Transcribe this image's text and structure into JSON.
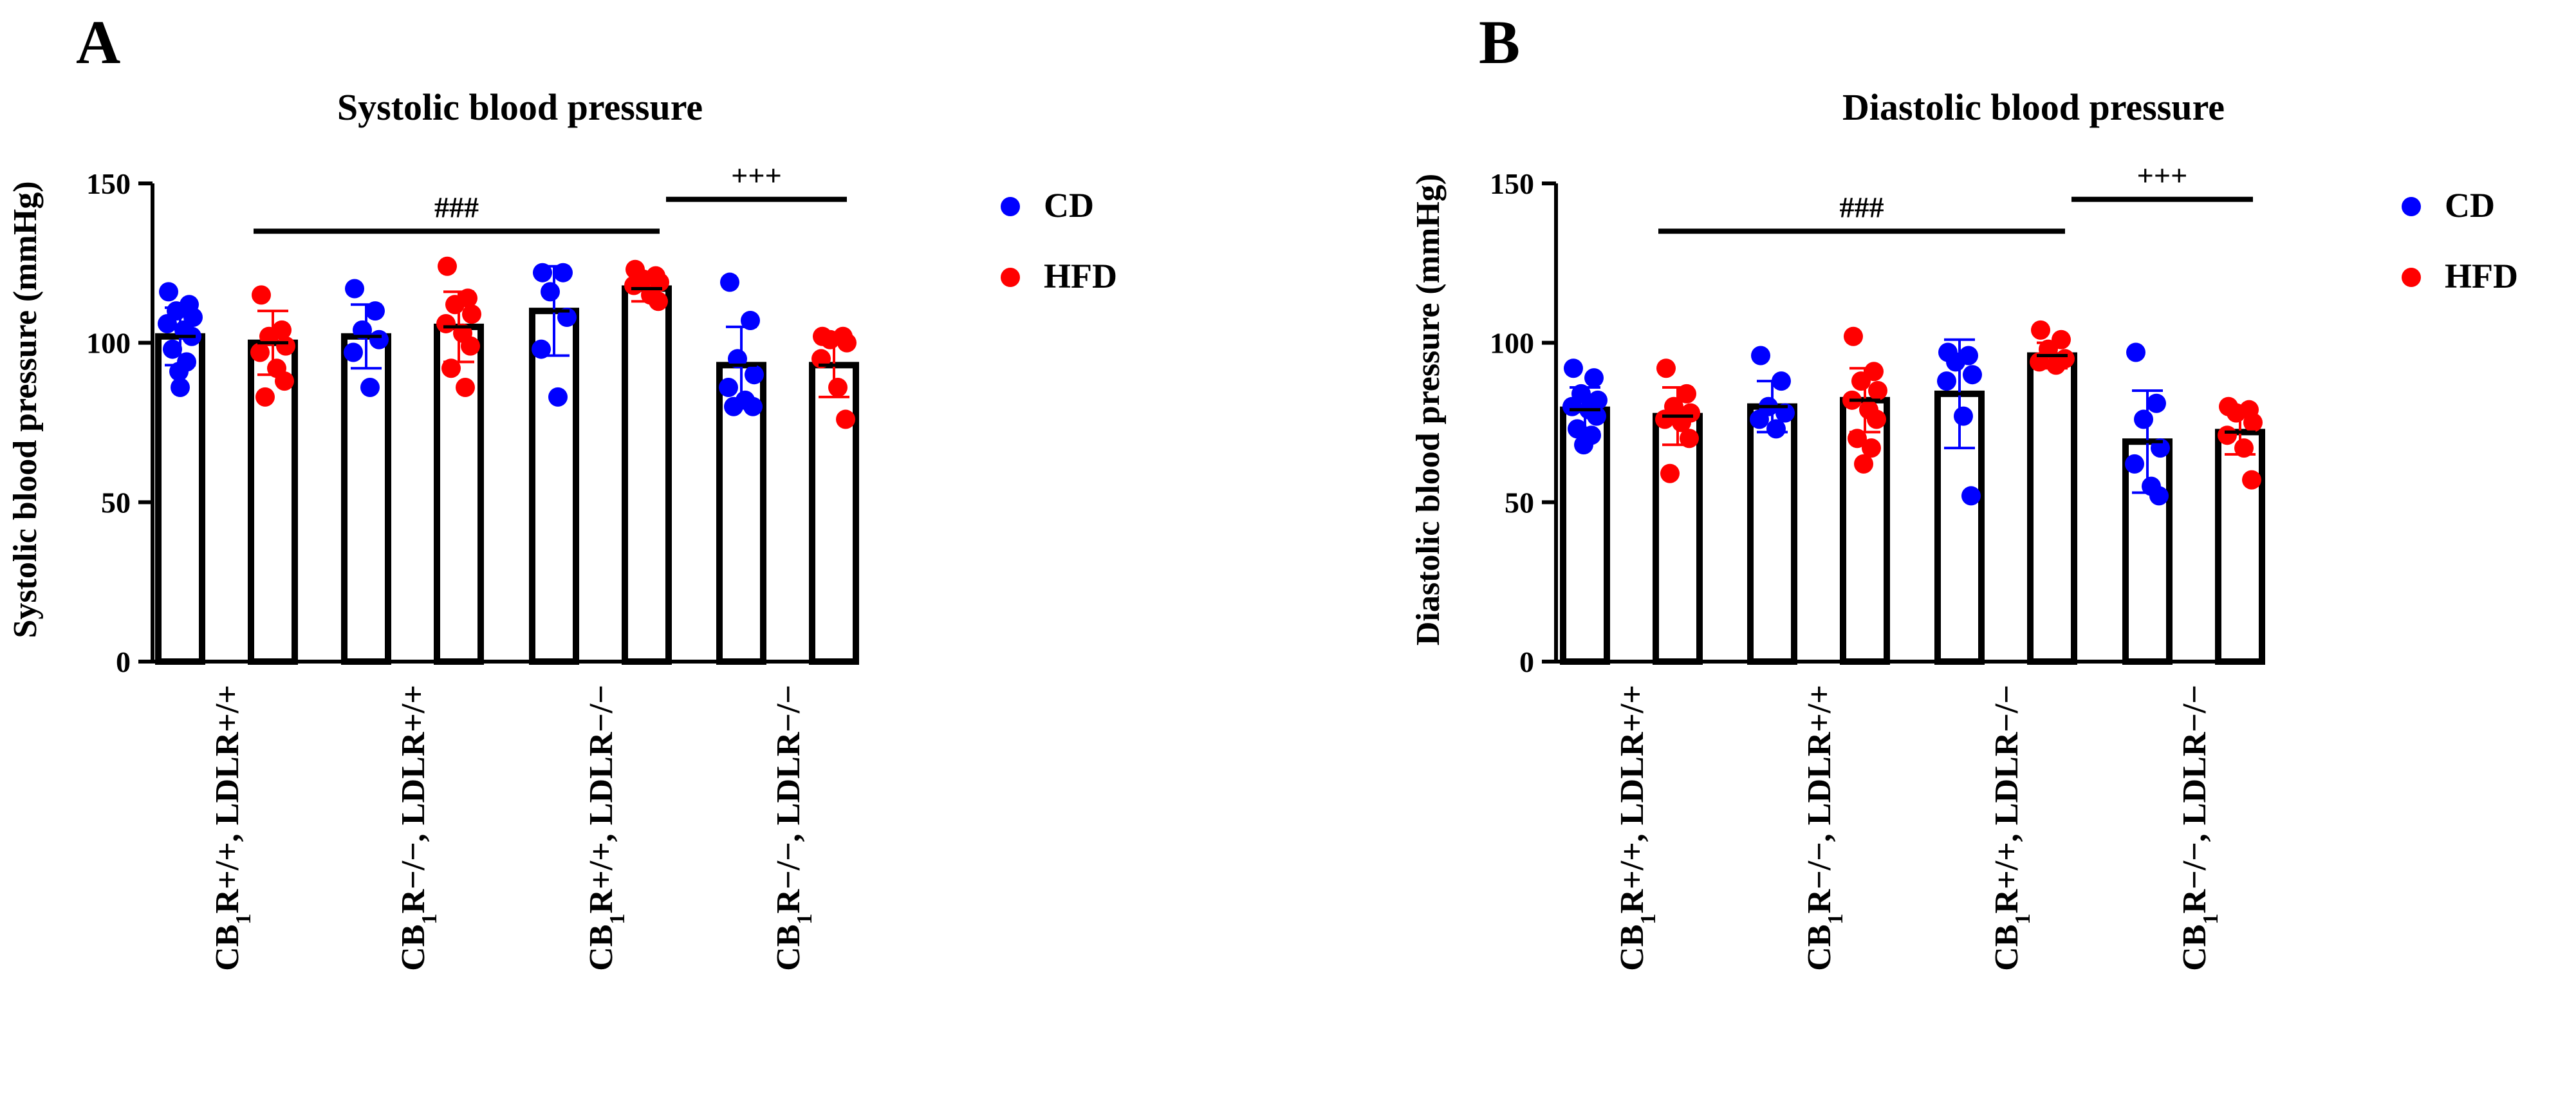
{
  "colors": {
    "CD": "#0000ff",
    "HFD": "#ff0000",
    "axis": "#000000"
  },
  "legend": [
    {
      "name": "CD",
      "color": "#0000ff"
    },
    {
      "name": "HFD",
      "color": "#ff0000"
    }
  ],
  "chart_data": [
    {
      "panel": "A",
      "type": "bar",
      "title": "Systolic blood pressure",
      "ylabel": "Systolic blood pressure (mmHg)",
      "xlabel": "",
      "ylim": [
        0,
        150
      ],
      "yticks": [
        0,
        50,
        100,
        150
      ],
      "categories": [
        {
          "pre": "CB",
          "sub": "1",
          "post": "R+/+, LDLR+/+"
        },
        {
          "pre": "CB",
          "sub": "1",
          "post": "R−/−, LDLR+/+"
        },
        {
          "pre": "CB",
          "sub": "1",
          "post": "R+/+, LDLR−/−"
        },
        {
          "pre": "CB",
          "sub": "1",
          "post": "R−/−, LDLR−/−"
        }
      ],
      "legend_position": "right",
      "grid": false,
      "series": [
        {
          "name": "CD",
          "values": [
            102,
            102,
            110,
            93
          ],
          "sd": [
            9,
            10,
            14,
            12
          ],
          "points": [
            [
              116,
              112,
              110,
              108,
              106,
              104,
              102,
              98,
              94,
              91,
              86
            ],
            [
              117,
              110,
              104,
              101,
              97,
              86
            ],
            [
              122,
              122,
              116,
              108,
              98,
              83
            ],
            [
              119,
              107,
              95,
              90,
              86,
              82,
              80,
              80
            ]
          ]
        },
        {
          "name": "HFD",
          "values": [
            100,
            105,
            117,
            93
          ],
          "sd": [
            10,
            11,
            4,
            10
          ],
          "points": [
            [
              115,
              104,
              102,
              99,
              97,
              92,
              88,
              83
            ],
            [
              124,
              114,
              112,
              109,
              106,
              103,
              99,
              92,
              86
            ],
            [
              123,
              121,
              120,
              119,
              118,
              115,
              113
            ],
            [
              102,
              102,
              101,
              100,
              95,
              86,
              76
            ]
          ]
        }
      ],
      "annotations": [
        {
          "label": "###",
          "from_category": 0,
          "to_category": 2,
          "y": 135
        },
        {
          "label": "+++",
          "from_category": 2,
          "to_category": 3,
          "y": 145
        }
      ]
    },
    {
      "panel": "B",
      "type": "bar",
      "title": "Diastolic blood pressure",
      "ylabel": "Diastolic blood pressure (mmHg)",
      "xlabel": "",
      "ylim": [
        0,
        150
      ],
      "yticks": [
        0,
        50,
        100,
        150
      ],
      "categories": [
        {
          "pre": "CB",
          "sub": "1",
          "post": "R+/+, LDLR+/+"
        },
        {
          "pre": "CB",
          "sub": "1",
          "post": "R−/−, LDLR+/+"
        },
        {
          "pre": "CB",
          "sub": "1",
          "post": "R+/+, LDLR−/−"
        },
        {
          "pre": "CB",
          "sub": "1",
          "post": "R−/−, LDLR−/−"
        }
      ],
      "legend_position": "right",
      "grid": false,
      "series": [
        {
          "name": "CD",
          "values": [
            79,
            80,
            84,
            69
          ],
          "sd": [
            7,
            8,
            17,
            16
          ],
          "points": [
            [
              92,
              89,
              84,
              82,
              80,
              79,
              77,
              73,
              71,
              68
            ],
            [
              96,
              88,
              80,
              78,
              76,
              73
            ],
            [
              97,
              96,
              94,
              90,
              88,
              77,
              52
            ],
            [
              97,
              81,
              76,
              67,
              62,
              55,
              52
            ]
          ]
        },
        {
          "name": "HFD",
          "values": [
            77,
            82,
            96,
            72
          ],
          "sd": [
            9,
            10,
            4,
            7
          ],
          "points": [
            [
              92,
              84,
              80,
              78,
              76,
              75,
              70,
              59
            ],
            [
              102,
              91,
              88,
              85,
              82,
              79,
              76,
              70,
              67,
              62
            ],
            [
              104,
              101,
              98,
              95,
              94,
              93
            ],
            [
              80,
              79,
              78,
              75,
              71,
              67,
              57
            ]
          ]
        }
      ],
      "annotations": [
        {
          "label": "###",
          "from_category": 0,
          "to_category": 2,
          "y": 135
        },
        {
          "label": "+++",
          "from_category": 2,
          "to_category": 3,
          "y": 145
        }
      ]
    }
  ]
}
